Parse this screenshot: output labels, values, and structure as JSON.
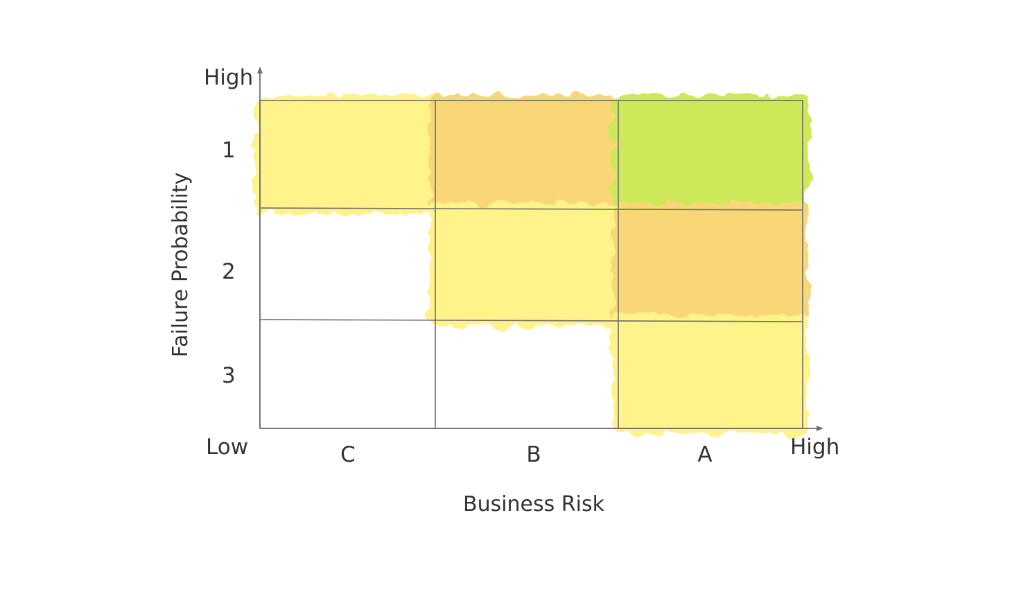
{
  "matrix": {
    "y_axis": {
      "title": "Failure Probability",
      "high_label": "High",
      "rows": [
        "1",
        "2",
        "3"
      ]
    },
    "x_axis": {
      "title": "Business Risk",
      "low_label": "Low",
      "high_label": "High",
      "columns": [
        "C",
        "B",
        "A"
      ]
    },
    "colors": {
      "yellow": "#fff176",
      "orange": "#f9cf5f",
      "green": "#c5e63e",
      "grid": "#6e6e6e",
      "text": "#333333"
    },
    "cells": [
      {
        "row": "1",
        "column": "C",
        "color": "yellow"
      },
      {
        "row": "1",
        "column": "B",
        "color": "orange"
      },
      {
        "row": "1",
        "column": "A",
        "color": "green"
      },
      {
        "row": "2",
        "column": "C",
        "color": "none"
      },
      {
        "row": "2",
        "column": "B",
        "color": "yellow"
      },
      {
        "row": "2",
        "column": "A",
        "color": "orange"
      },
      {
        "row": "3",
        "column": "C",
        "color": "none"
      },
      {
        "row": "3",
        "column": "B",
        "color": "none"
      },
      {
        "row": "3",
        "column": "A",
        "color": "yellow"
      }
    ]
  }
}
